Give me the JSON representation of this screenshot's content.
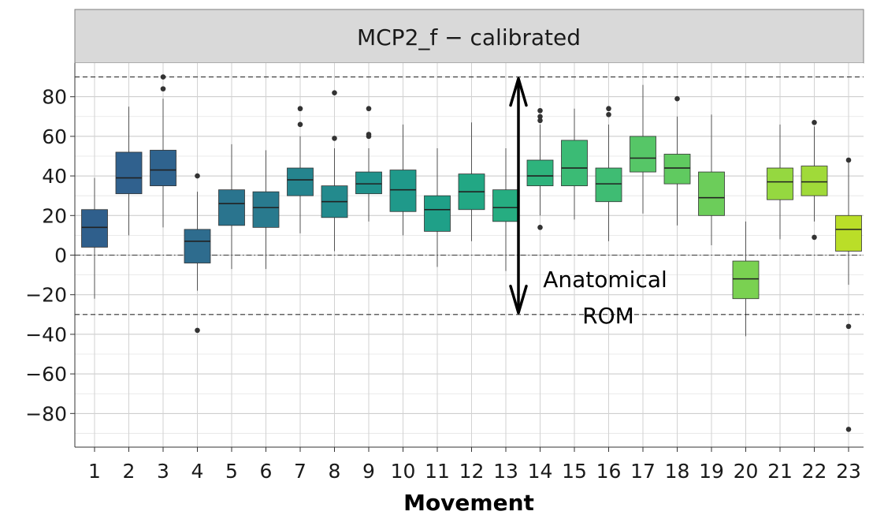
{
  "chart_data": {
    "type": "box",
    "facet_title": "MCP2_f − calibrated",
    "xlabel": "Movement",
    "ylabel": "",
    "ylim": [
      -97,
      97
    ],
    "y_ticks": [
      80,
      60,
      40,
      20,
      0,
      -20,
      -40,
      -60,
      -80
    ],
    "y_tick_labels": [
      "80",
      "60",
      "40",
      "20",
      "0",
      "−20",
      "−40",
      "−60",
      "−80"
    ],
    "reference_lines": {
      "upper_dashed": 90,
      "lower_dashed": -30,
      "zero_dotdash": 0
    },
    "annotation": {
      "lines": [
        "Anatomical",
        "ROM"
      ],
      "arrow_from": -30,
      "arrow_to": 90
    },
    "grid": true,
    "categories": [
      "1",
      "2",
      "3",
      "4",
      "5",
      "6",
      "7",
      "8",
      "9",
      "10",
      "11",
      "12",
      "13",
      "14",
      "15",
      "16",
      "17",
      "18",
      "19",
      "20",
      "21",
      "22",
      "23"
    ],
    "boxes": [
      {
        "q1": 4,
        "median": 14,
        "q3": 23,
        "lower": -22,
        "upper": 39,
        "outliers": [],
        "color": "#2f5f8c"
      },
      {
        "q1": 31,
        "median": 39,
        "q3": 52,
        "lower": 10,
        "upper": 75,
        "outliers": [],
        "color": "#30618e"
      },
      {
        "q1": 35,
        "median": 43,
        "q3": 53,
        "lower": 14,
        "upper": 79,
        "outliers": [
          84,
          90
        ],
        "color": "#2f638e"
      },
      {
        "q1": -4,
        "median": 7,
        "q3": 13,
        "lower": -18,
        "upper": 32,
        "outliers": [
          40,
          -38
        ],
        "color": "#2e6c8e"
      },
      {
        "q1": 15,
        "median": 26,
        "q3": 33,
        "lower": -7,
        "upper": 56,
        "outliers": [],
        "color": "#2a748e"
      },
      {
        "q1": 14,
        "median": 24,
        "q3": 32,
        "lower": -7,
        "upper": 53,
        "outliers": [],
        "color": "#297a8e"
      },
      {
        "q1": 30,
        "median": 38,
        "q3": 44,
        "lower": 11,
        "upper": 60,
        "outliers": [
          66,
          74
        ],
        "color": "#25848e"
      },
      {
        "q1": 19,
        "median": 27,
        "q3": 35,
        "lower": 2,
        "upper": 54,
        "outliers": [
          59,
          82
        ],
        "color": "#238a8d"
      },
      {
        "q1": 31,
        "median": 36,
        "q3": 42,
        "lower": 17,
        "upper": 54,
        "outliers": [
          60,
          61,
          74
        ],
        "color": "#20928c"
      },
      {
        "q1": 22,
        "median": 33,
        "q3": 43,
        "lower": 10,
        "upper": 66,
        "outliers": [],
        "color": "#1f998a"
      },
      {
        "q1": 12,
        "median": 23,
        "q3": 30,
        "lower": -6,
        "upper": 54,
        "outliers": [],
        "color": "#1fa088"
      },
      {
        "q1": 23,
        "median": 32,
        "q3": 41,
        "lower": 7,
        "upper": 67,
        "outliers": [],
        "color": "#22a784"
      },
      {
        "q1": 17,
        "median": 24,
        "q3": 33,
        "lower": -8,
        "upper": 54,
        "outliers": [],
        "color": "#26ad81"
      },
      {
        "q1": 35,
        "median": 40,
        "q3": 48,
        "lower": 20,
        "upper": 66,
        "outliers": [
          68,
          70,
          73,
          14
        ],
        "color": "#2eb37c"
      },
      {
        "q1": 35,
        "median": 44,
        "q3": 58,
        "lower": 18,
        "upper": 74,
        "outliers": [],
        "color": "#3bbb75"
      },
      {
        "q1": 27,
        "median": 36,
        "q3": 44,
        "lower": 7,
        "upper": 66,
        "outliers": [
          71,
          74
        ],
        "color": "#3fbc73"
      },
      {
        "q1": 42,
        "median": 49,
        "q3": 60,
        "lower": 21,
        "upper": 86,
        "outliers": [],
        "color": "#56c667"
      },
      {
        "q1": 36,
        "median": 44,
        "q3": 51,
        "lower": 15,
        "upper": 70,
        "outliers": [
          79
        ],
        "color": "#60ca60"
      },
      {
        "q1": 20,
        "median": 29,
        "q3": 42,
        "lower": 5,
        "upper": 71,
        "outliers": [],
        "color": "#6ccd5a"
      },
      {
        "q1": -22,
        "median": -12,
        "q3": -3,
        "lower": -41,
        "upper": 17,
        "outliers": [],
        "color": "#7ad151"
      },
      {
        "q1": 28,
        "median": 37,
        "q3": 44,
        "lower": 8,
        "upper": 66,
        "outliers": [],
        "color": "#95d840"
      },
      {
        "q1": 30,
        "median": 37,
        "q3": 45,
        "lower": 17,
        "upper": 65,
        "outliers": [
          67,
          9
        ],
        "color": "#a0da39"
      },
      {
        "q1": 2,
        "median": 13,
        "q3": 20,
        "lower": -15,
        "upper": 47,
        "outliers": [
          48,
          -36,
          -88
        ],
        "color": "#bade28"
      }
    ]
  }
}
